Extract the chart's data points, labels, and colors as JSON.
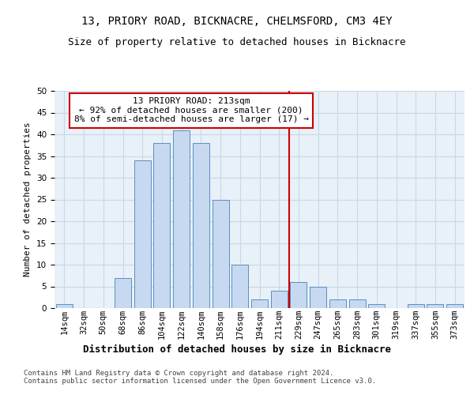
{
  "title": "13, PRIORY ROAD, BICKNACRE, CHELMSFORD, CM3 4EY",
  "subtitle": "Size of property relative to detached houses in Bicknacre",
  "xlabel_bottom": "Distribution of detached houses by size in Bicknacre",
  "ylabel": "Number of detached properties",
  "bar_labels": [
    "14sqm",
    "32sqm",
    "50sqm",
    "68sqm",
    "86sqm",
    "104sqm",
    "122sqm",
    "140sqm",
    "158sqm",
    "176sqm",
    "194sqm",
    "211sqm",
    "229sqm",
    "247sqm",
    "265sqm",
    "283sqm",
    "301sqm",
    "319sqm",
    "337sqm",
    "355sqm",
    "373sqm"
  ],
  "bar_values": [
    1,
    0,
    0,
    7,
    34,
    38,
    41,
    38,
    25,
    10,
    2,
    4,
    6,
    5,
    2,
    2,
    1,
    0,
    1,
    1,
    1
  ],
  "bar_color": "#c6d9f0",
  "bar_edge_color": "#5a8fc2",
  "property_line_color": "#cc0000",
  "annotation_text": "13 PRIORY ROAD: 213sqm\n← 92% of detached houses are smaller (200)\n8% of semi-detached houses are larger (17) →",
  "annotation_box_color": "#ffffff",
  "annotation_box_edge": "#cc0000",
  "ylim": [
    0,
    50
  ],
  "grid_color": "#c8d8e8",
  "background_color": "#e8f0f8",
  "footer_text": "Contains HM Land Registry data © Crown copyright and database right 2024.\nContains public sector information licensed under the Open Government Licence v3.0.",
  "title_fontsize": 10,
  "subtitle_fontsize": 9,
  "tick_fontsize": 7.5,
  "ylabel_fontsize": 8,
  "annotation_fontsize": 8,
  "xlabel_fontsize": 9,
  "footer_fontsize": 6.5
}
